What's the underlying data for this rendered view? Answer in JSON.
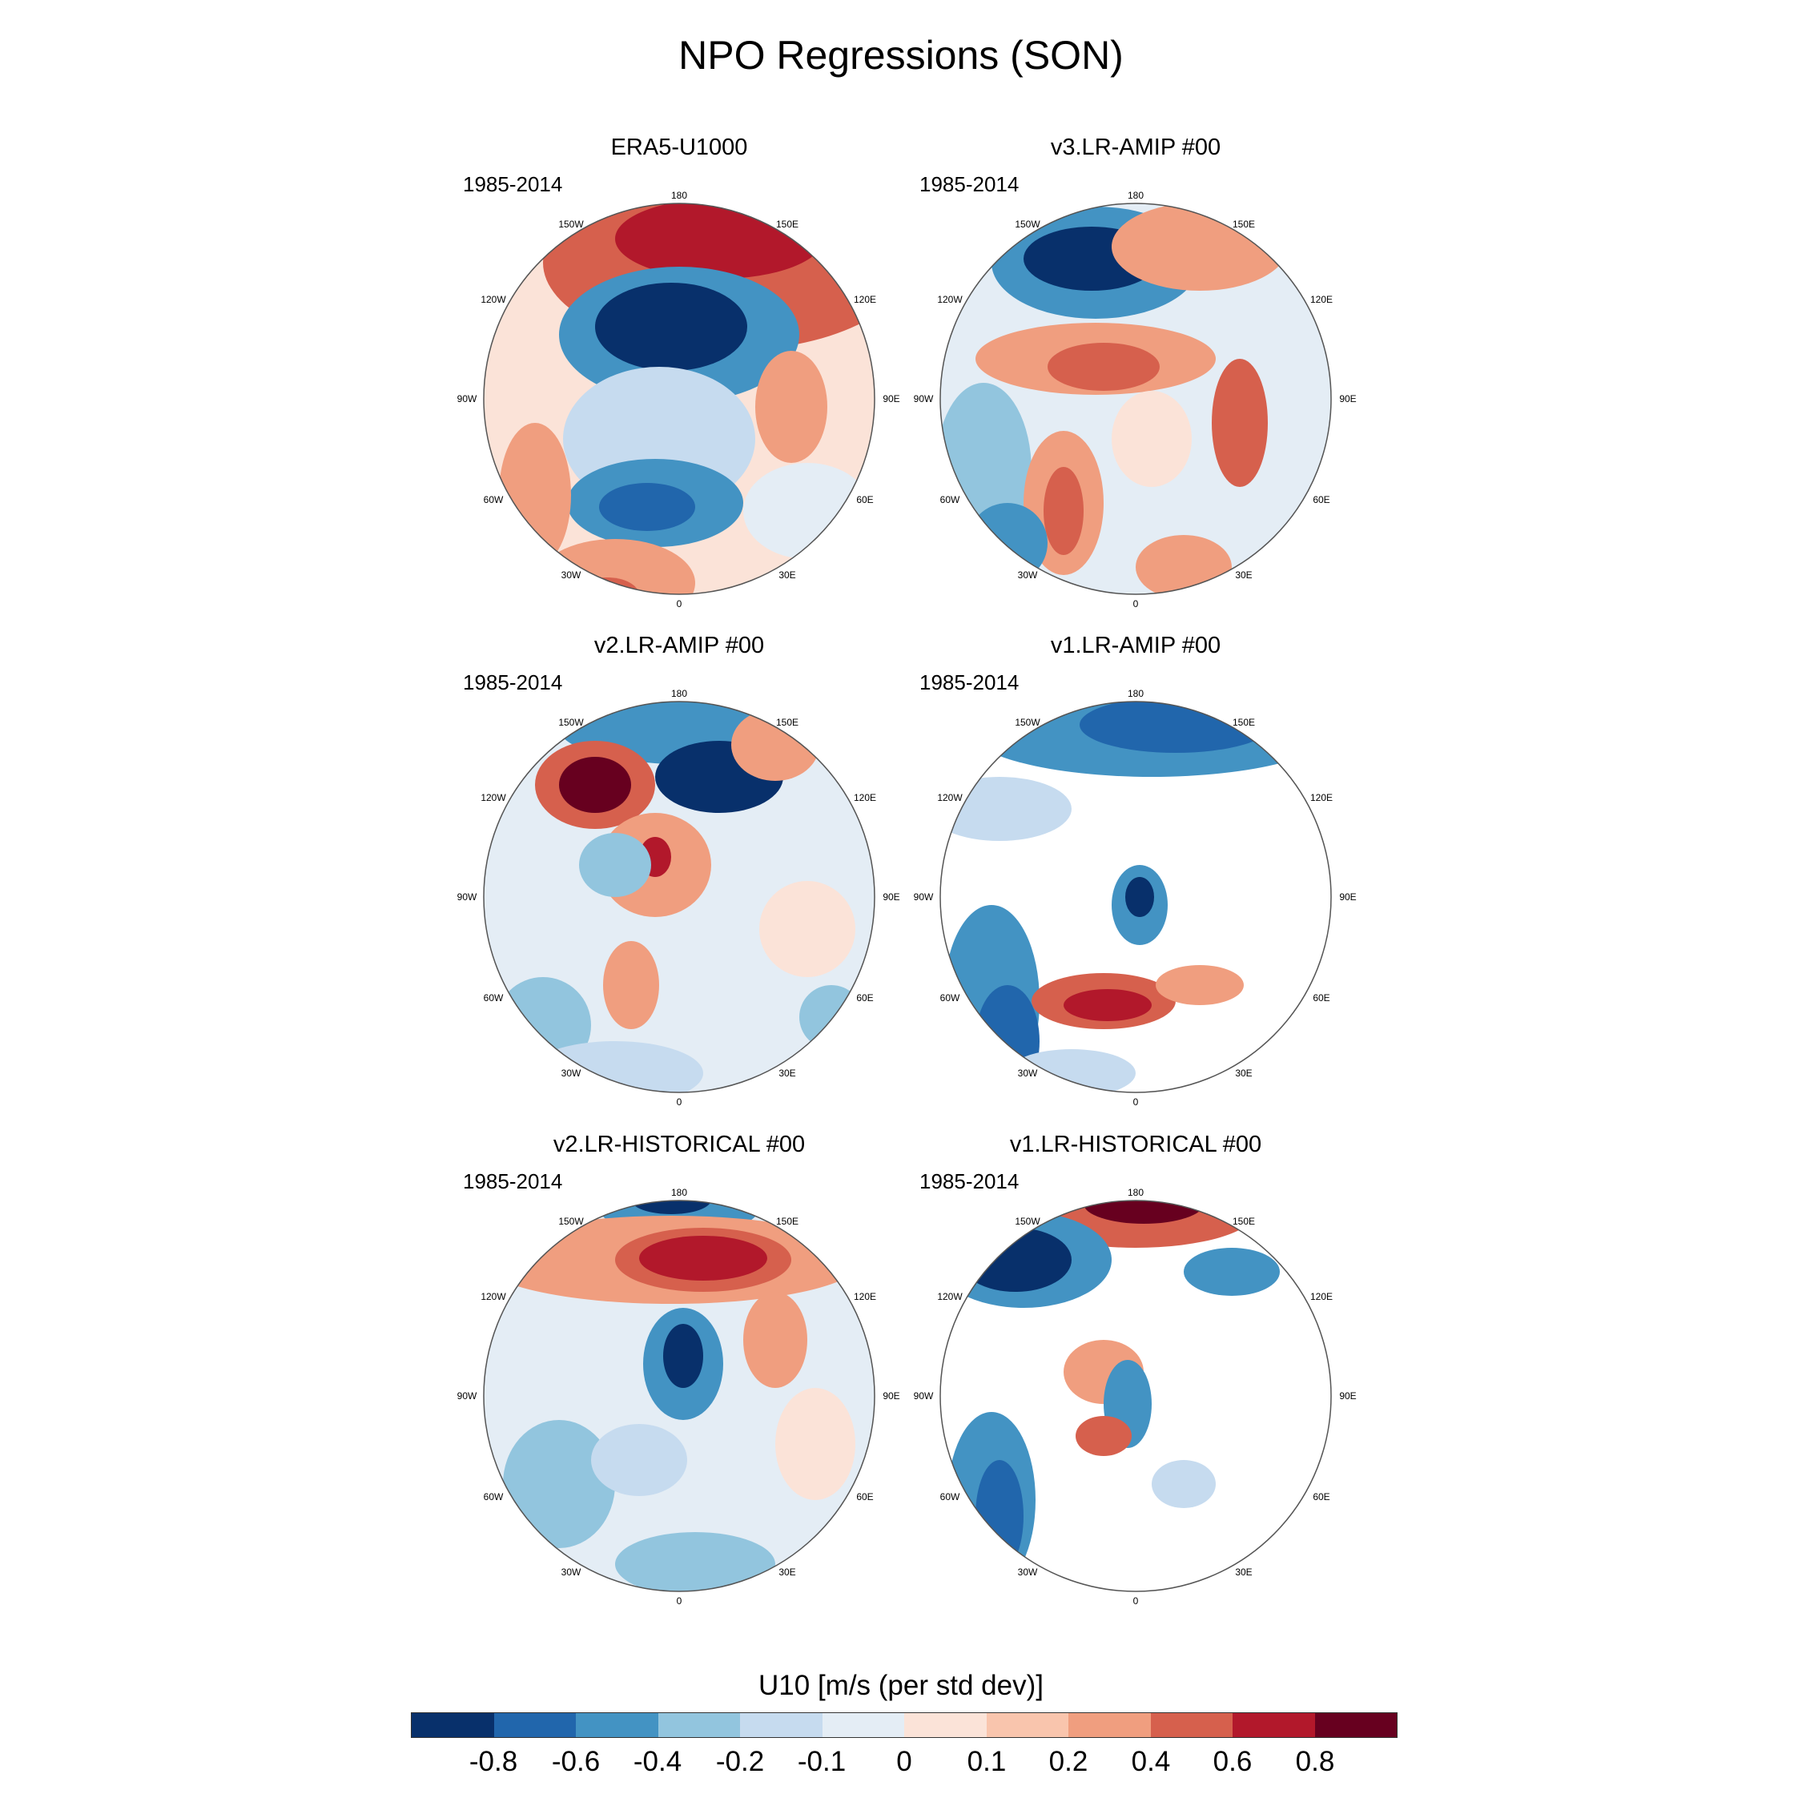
{
  "title": "NPO Regressions (SON)",
  "period": "1985-2014",
  "panels": [
    {
      "title": "ERA5-U1000"
    },
    {
      "title": "v3.LR-AMIP  #00"
    },
    {
      "title": "v2.LR-AMIP  #00"
    },
    {
      "title": "v1.LR-AMIP  #00"
    },
    {
      "title": "v2.LR-HISTORICAL  #00"
    },
    {
      "title": "v1.LR-HISTORICAL  #00"
    }
  ],
  "longitude_labels": [
    "180",
    "150E",
    "120E",
    "90E",
    "60E",
    "30E",
    "0",
    "30W",
    "60W",
    "90W",
    "120W",
    "150W"
  ],
  "colorbar": {
    "title": "U10 [m/s (per std dev)]",
    "labels": [
      "-0.8",
      "-0.6",
      "-0.4",
      "-0.2",
      "-0.1",
      "0",
      "0.1",
      "0.2",
      "0.4",
      "0.6",
      "0.8"
    ],
    "colors": [
      "#08306b",
      "#2166ac",
      "#4393c3",
      "#92c5de",
      "#c6dbef",
      "#e4edf5",
      "#fbe3d8",
      "#f9c5ad",
      "#f09e7f",
      "#d6604d",
      "#b2182b",
      "#67001f"
    ]
  }
}
